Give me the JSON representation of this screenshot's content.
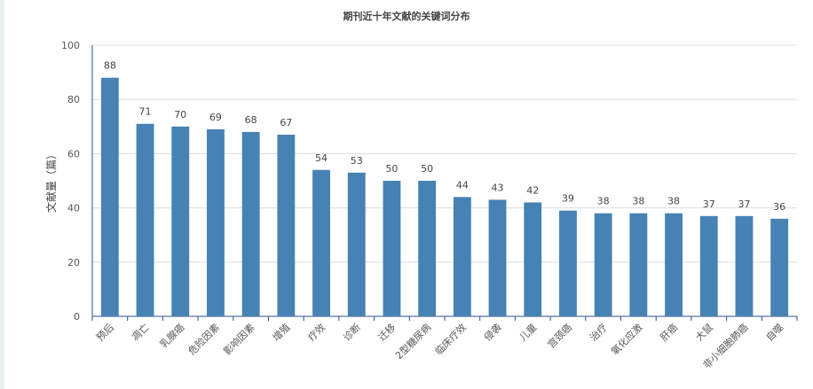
{
  "chart_data": {
    "type": "bar",
    "title": "期刊近十年文献的关键词分布",
    "xlabel": "",
    "ylabel": "文献量（篇）",
    "ylim": [
      0,
      100
    ],
    "yticks": [
      0,
      20,
      40,
      60,
      80,
      100
    ],
    "grid": true,
    "categories": [
      "预后",
      "凋亡",
      "乳腺癌",
      "危险因素",
      "影响因素",
      "增殖",
      "疗效",
      "诊断",
      "迁移",
      "2型糖尿病",
      "临床疗效",
      "侵袭",
      "儿童",
      "宫颈癌",
      "治疗",
      "氧化应激",
      "肝癌",
      "大鼠",
      "非小细胞肺癌",
      "自噬"
    ],
    "values": [
      88,
      71,
      70,
      69,
      68,
      67,
      54,
      53,
      50,
      50,
      44,
      43,
      42,
      39,
      38,
      38,
      38,
      37,
      37,
      36
    ],
    "colors": {
      "bar": "#4682b4",
      "axis": "#2f4f8f",
      "grid": "#dddddd",
      "text": "#444444"
    }
  }
}
